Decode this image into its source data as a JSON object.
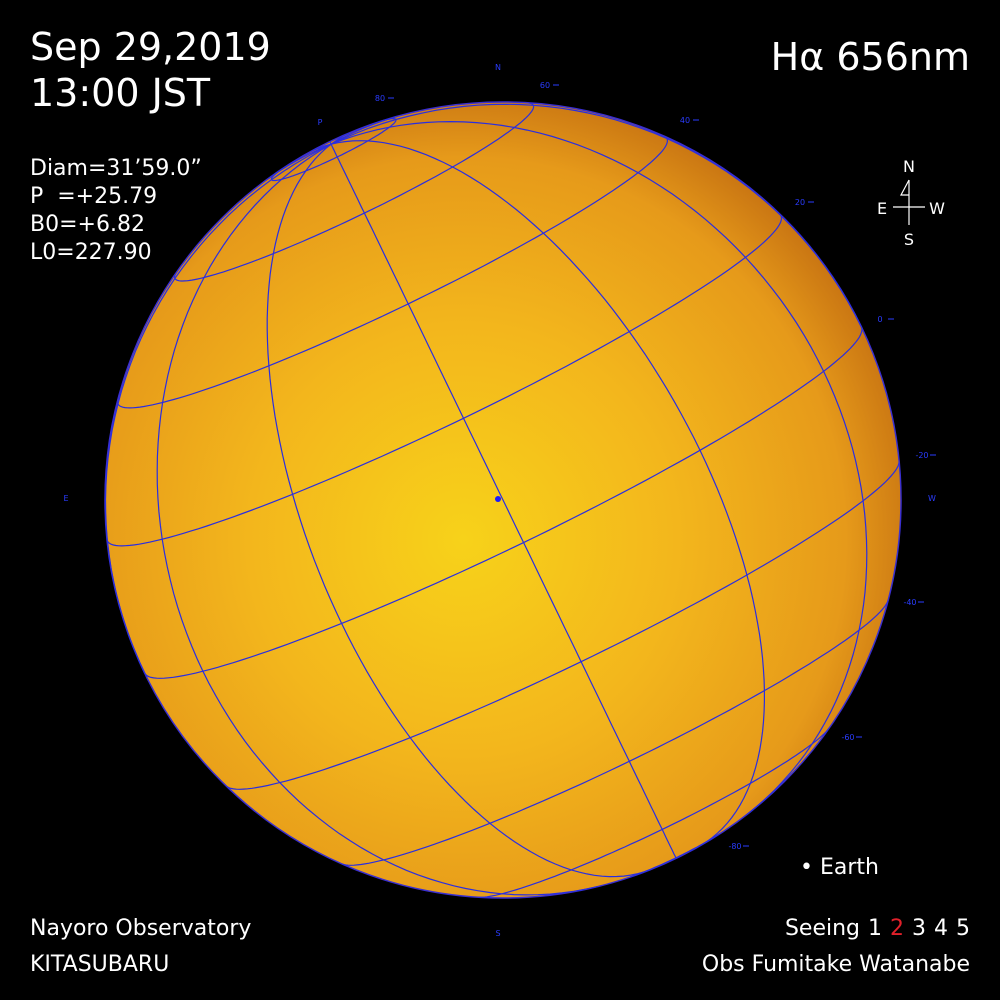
{
  "header": {
    "date": "Sep 29,2019",
    "time": "13:00 JST",
    "wavelength": "Hα 656nm"
  },
  "parameters": [
    "Diam=31’59.0”",
    "P  =+25.79",
    "B0=+6.82",
    "L0=227.90"
  ],
  "compass": {
    "north": "N",
    "east": "E",
    "west": "W",
    "south": "S"
  },
  "grid_labels": {
    "north": "N",
    "south": "S",
    "east": "E",
    "west": "W",
    "pole": "P",
    "latitudes": [
      "80",
      "60",
      "40",
      "20",
      "0",
      "-20",
      "-40",
      "-60",
      "-80"
    ]
  },
  "earth": "• Earth",
  "footer": {
    "observatory": "Nayoro Observatory",
    "telescope": "KITASUBARU",
    "seeing": {
      "label": "Seeing",
      "levels": [
        "1",
        "2",
        "3",
        "4",
        "5"
      ],
      "selected_index": 1,
      "selected_color": "#e0202a"
    },
    "observer": "Obs Fumitake Watanabe"
  }
}
